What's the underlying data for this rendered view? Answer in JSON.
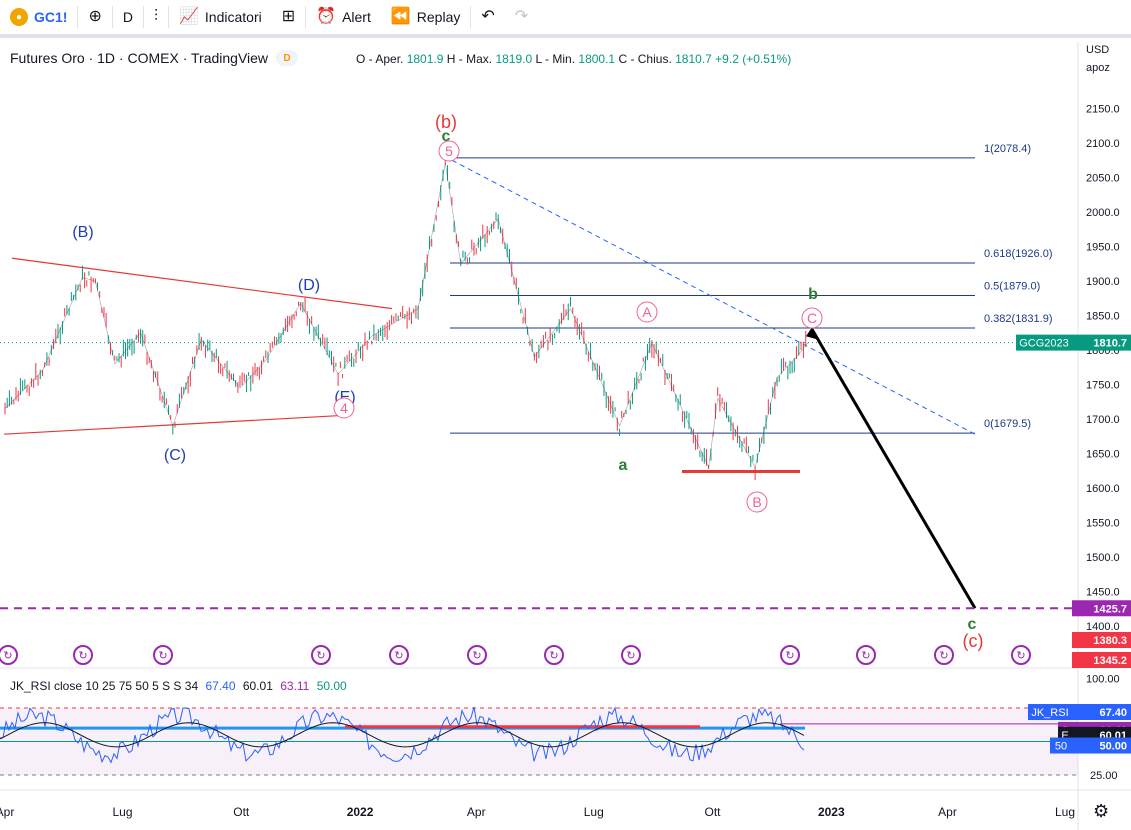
{
  "toolbar": {
    "symbol": "GC1!",
    "interval": "D",
    "indicators_label": "Indicatori",
    "alert_label": "Alert",
    "replay_label": "Replay"
  },
  "legend": {
    "title": "Futures Oro · 1D · COMEX · TradingView",
    "badge": "D",
    "ohlc_o_label": "O - Aper.",
    "ohlc_o": "1801.9",
    "ohlc_h_label": "H - Max.",
    "ohlc_h": "1819.0",
    "ohlc_l_label": "L - Min.",
    "ohlc_l": "1800.1",
    "ohlc_c_label": "C - Chius.",
    "ohlc_c": "1810.7",
    "change": "+9.2 (+0.51%)"
  },
  "scale": {
    "currency": "USD",
    "mode": "apoz"
  },
  "rsi_legend": {
    "name": "JK_RSI close 10 25 75 50 5 S S 34",
    "v1": "67.40",
    "v2": "60.01",
    "v3": "63.11",
    "v4": "50.00"
  },
  "colors": {
    "up": "#089981",
    "down": "#f23645",
    "bar": "#3b4654",
    "fib": "#1e3a8a",
    "wave_blue": "#1e40af",
    "wave_red": "#e53935",
    "wave_green": "#2e7d32",
    "wave_pink": "#f06292",
    "purple": "#9c27b0",
    "accent": "#2962ff"
  },
  "chart_data": [
    {
      "type": "candlestick",
      "title": "Futures Oro · 1D · COMEX · TradingView",
      "series_name": "GCG2023",
      "last_price": 1810.7,
      "y_ticks": [
        2150.0,
        2100.0,
        2050.0,
        2000.0,
        1950.0,
        1900.0,
        1850.0,
        1800.0,
        1750.0,
        1700.0,
        1650.0,
        1600.0,
        1550.0,
        1500.0,
        1450.0,
        1400.0
      ],
      "ylim": [
        1380,
        2200
      ],
      "x_ticks": [
        "Apr",
        "Lug",
        "Ott",
        "2022",
        "Apr",
        "Lug",
        "Ott",
        "2023",
        "Apr",
        "Lug"
      ],
      "prices": [
        {
          "date": "2021-04-01",
          "close": 1715
        },
        {
          "date": "2021-04-30",
          "close": 1770
        },
        {
          "date": "2021-05-31",
          "close": 1905
        },
        {
          "date": "2021-06-10",
          "close": 1900
        },
        {
          "date": "2021-06-25",
          "close": 1780
        },
        {
          "date": "2021-07-15",
          "close": 1825
        },
        {
          "date": "2021-08-09",
          "close": 1690
        },
        {
          "date": "2021-08-31",
          "close": 1815
        },
        {
          "date": "2021-09-30",
          "close": 1745
        },
        {
          "date": "2021-10-20",
          "close": 1785
        },
        {
          "date": "2021-11-16",
          "close": 1868
        },
        {
          "date": "2021-12-15",
          "close": 1765
        },
        {
          "date": "2022-01-10",
          "close": 1820
        },
        {
          "date": "2022-02-15",
          "close": 1860
        },
        {
          "date": "2022-03-08",
          "close": 2070
        },
        {
          "date": "2022-03-20",
          "close": 1925
        },
        {
          "date": "2022-04-18",
          "close": 1990
        },
        {
          "date": "2022-05-16",
          "close": 1790
        },
        {
          "date": "2022-06-13",
          "close": 1860
        },
        {
          "date": "2022-07-21",
          "close": 1690
        },
        {
          "date": "2022-08-15",
          "close": 1810
        },
        {
          "date": "2022-09-28",
          "close": 1630
        },
        {
          "date": "2022-10-05",
          "close": 1730
        },
        {
          "date": "2022-11-03",
          "close": 1630
        },
        {
          "date": "2022-11-20",
          "close": 1760
        },
        {
          "date": "2022-12-05",
          "close": 1790
        },
        {
          "date": "2022-12-14",
          "close": 1810.7
        }
      ],
      "fib_levels": [
        {
          "label": "1(2078.4)",
          "value": 2078.4
        },
        {
          "label": "0.618(1926.0)",
          "value": 1926.0
        },
        {
          "label": "0.5(1879.0)",
          "value": 1879.0
        },
        {
          "label": "0.382(1831.9)",
          "value": 1831.9
        },
        {
          "label": "0(1679.5)",
          "value": 1679.5
        }
      ],
      "horizontal_levels": [
        {
          "label": "1425.7",
          "value": 1425.7
        }
      ],
      "price_labels": [
        "GCG2023",
        "1810.7",
        "1425.7",
        "1380.3",
        "1345.2"
      ],
      "wave_labels": [
        "(B)",
        "(C)",
        "(D)",
        "(E)",
        "4",
        "(b)",
        "c",
        "5",
        "A",
        "B",
        "C",
        "a",
        "b",
        "c",
        "(c)"
      ]
    },
    {
      "type": "line",
      "title": "JK_RSI close 10 25 75 50 5 S S 34",
      "y_ticks": [
        75.0,
        50.0,
        25.0
      ],
      "ylim": [
        0,
        100
      ],
      "values": {
        "rsi": 67.4,
        "signal": 63.11,
        "ema": 60.01,
        "mid": 50.0
      },
      "price_labels": [
        "JK_RSI",
        "67.40",
        "S",
        "63.11",
        "E",
        "60.01",
        "50",
        "50.00"
      ]
    }
  ]
}
